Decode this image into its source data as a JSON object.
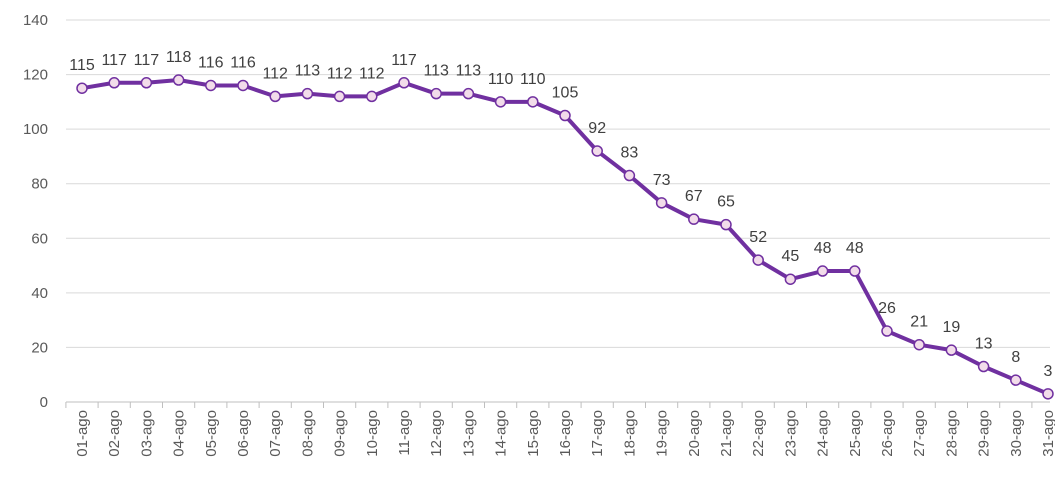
{
  "chart_data": {
    "type": "line",
    "categories": [
      "01-ago",
      "02-ago",
      "03-ago",
      "04-ago",
      "05-ago",
      "06-ago",
      "07-ago",
      "08-ago",
      "09-ago",
      "10-ago",
      "11-ago",
      "12-ago",
      "13-ago",
      "14-ago",
      "15-ago",
      "16-ago",
      "17-ago",
      "18-ago",
      "19-ago",
      "20-ago",
      "21-ago",
      "22-ago",
      "23-ago",
      "24-ago",
      "25-ago",
      "26-ago",
      "27-ago",
      "28-ago",
      "29-ago",
      "30-ago",
      "31-ago"
    ],
    "values": [
      115,
      117,
      117,
      118,
      116,
      116,
      112,
      113,
      112,
      112,
      117,
      113,
      113,
      110,
      110,
      105,
      92,
      83,
      73,
      67,
      65,
      52,
      45,
      48,
      48,
      26,
      21,
      19,
      13,
      8,
      3
    ],
    "color": "#7030a0",
    "marker_fill": "#f2dcea",
    "ylim": [
      0,
      140
    ],
    "yticks": [
      0,
      20,
      40,
      60,
      80,
      100,
      120,
      140
    ],
    "grid": true
  }
}
